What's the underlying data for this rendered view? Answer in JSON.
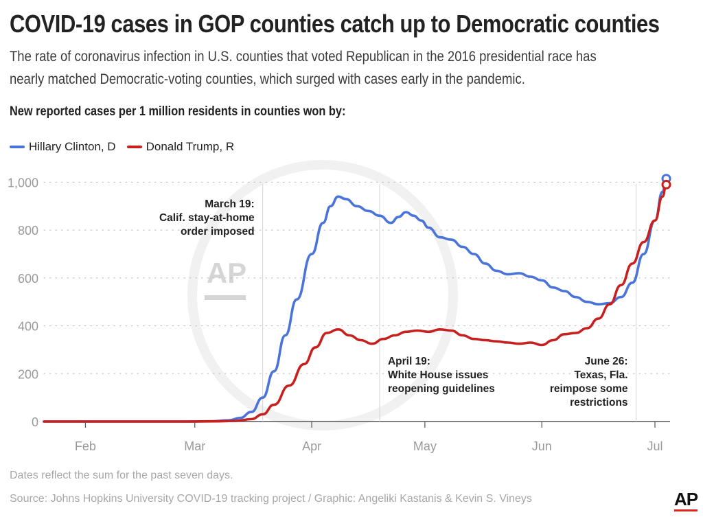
{
  "header": {
    "title": "COVID-19 cases in GOP counties catch up to Democratic counties",
    "subtitle": "The rate of coronavirus infection in U.S. counties that voted Republican in the 2016 presidential race has nearly matched Democratic-voting counties, which surged with cases early in the pandemic.",
    "axis_heading": "New reported cases per 1 million residents in counties won by:"
  },
  "legend": {
    "items": [
      {
        "label": "Hillary Clinton, D",
        "color": "#4a74d9"
      },
      {
        "label": "Donald Trump, R",
        "color": "#c8201f"
      }
    ]
  },
  "watermark": {
    "text": "AP"
  },
  "footer": {
    "note": "Dates reflect the sum for the past seven days.",
    "source": "Source: Johns Hopkins University COVID-19 tracking project / Graphic: Angeliki Kastanis & Kevin S. Vineys",
    "logo": "AP"
  },
  "chart_data": {
    "type": "line",
    "title": "New reported cases per 1 million residents in counties won by:",
    "xlabel": "",
    "ylabel": "",
    "x_domain": [
      "2020-01-21",
      "2020-07-05"
    ],
    "ylim": [
      0,
      1050
    ],
    "y_ticks": [
      0,
      200,
      400,
      600,
      800,
      1000
    ],
    "y_tick_labels": [
      "0",
      "200",
      "400",
      "600",
      "800",
      "1,000"
    ],
    "x_ticks": [
      {
        "date": "2020-02-01",
        "label": "Feb"
      },
      {
        "date": "2020-03-01",
        "label": "Mar"
      },
      {
        "date": "2020-04-01",
        "label": "Apr"
      },
      {
        "date": "2020-05-01",
        "label": "May"
      },
      {
        "date": "2020-06-01",
        "label": "Jun"
      },
      {
        "date": "2020-07-01",
        "label": "Jul"
      }
    ],
    "grid": true,
    "legend_position": "top-left",
    "annotations": [
      {
        "date": "2020-03-19",
        "lines": [
          "March 19:",
          "Calif. stay-at-home",
          "order imposed"
        ],
        "align": "left-of-line"
      },
      {
        "date": "2020-04-19",
        "lines": [
          "April 19:",
          "White House issues",
          "reopening guidelines"
        ],
        "align": "right-of-line"
      },
      {
        "date": "2020-06-26",
        "lines": [
          "June 26:",
          "Texas, Fla.",
          "reimpose some",
          "restrictions"
        ],
        "align": "left-of-line"
      }
    ],
    "series": [
      {
        "name": "Hillary Clinton, D",
        "color": "#4a74d9",
        "end_marker": true,
        "points": [
          [
            "2020-01-21",
            0
          ],
          [
            "2020-02-15",
            0
          ],
          [
            "2020-02-28",
            0
          ],
          [
            "2020-03-05",
            1
          ],
          [
            "2020-03-10",
            5
          ],
          [
            "2020-03-13",
            15
          ],
          [
            "2020-03-16",
            40
          ],
          [
            "2020-03-19",
            100
          ],
          [
            "2020-03-22",
            210
          ],
          [
            "2020-03-25",
            360
          ],
          [
            "2020-03-28",
            510
          ],
          [
            "2020-04-01",
            700
          ],
          [
            "2020-04-04",
            830
          ],
          [
            "2020-04-06",
            900
          ],
          [
            "2020-04-08",
            940
          ],
          [
            "2020-04-10",
            930
          ],
          [
            "2020-04-13",
            900
          ],
          [
            "2020-04-16",
            880
          ],
          [
            "2020-04-19",
            860
          ],
          [
            "2020-04-22",
            830
          ],
          [
            "2020-04-24",
            855
          ],
          [
            "2020-04-26",
            875
          ],
          [
            "2020-04-28",
            860
          ],
          [
            "2020-04-30",
            840
          ],
          [
            "2020-05-02",
            810
          ],
          [
            "2020-05-05",
            770
          ],
          [
            "2020-05-08",
            760
          ],
          [
            "2020-05-11",
            730
          ],
          [
            "2020-05-14",
            700
          ],
          [
            "2020-05-17",
            660
          ],
          [
            "2020-05-20",
            630
          ],
          [
            "2020-05-23",
            615
          ],
          [
            "2020-05-26",
            620
          ],
          [
            "2020-05-29",
            605
          ],
          [
            "2020-06-01",
            590
          ],
          [
            "2020-06-04",
            560
          ],
          [
            "2020-06-07",
            545
          ],
          [
            "2020-06-10",
            520
          ],
          [
            "2020-06-13",
            500
          ],
          [
            "2020-06-16",
            490
          ],
          [
            "2020-06-19",
            495
          ],
          [
            "2020-06-22",
            520
          ],
          [
            "2020-06-25",
            580
          ],
          [
            "2020-06-28",
            700
          ],
          [
            "2020-07-01",
            840
          ],
          [
            "2020-07-03",
            960
          ],
          [
            "2020-07-04",
            1015
          ]
        ]
      },
      {
        "name": "Donald Trump, R",
        "color": "#c8201f",
        "end_marker": true,
        "points": [
          [
            "2020-01-21",
            0
          ],
          [
            "2020-02-15",
            0
          ],
          [
            "2020-02-28",
            0
          ],
          [
            "2020-03-07",
            1
          ],
          [
            "2020-03-12",
            3
          ],
          [
            "2020-03-16",
            10
          ],
          [
            "2020-03-19",
            30
          ],
          [
            "2020-03-22",
            70
          ],
          [
            "2020-03-26",
            150
          ],
          [
            "2020-03-30",
            240
          ],
          [
            "2020-04-02",
            310
          ],
          [
            "2020-04-05",
            370
          ],
          [
            "2020-04-08",
            385
          ],
          [
            "2020-04-11",
            360
          ],
          [
            "2020-04-14",
            340
          ],
          [
            "2020-04-17",
            325
          ],
          [
            "2020-04-20",
            345
          ],
          [
            "2020-04-23",
            360
          ],
          [
            "2020-04-26",
            375
          ],
          [
            "2020-04-29",
            380
          ],
          [
            "2020-05-02",
            375
          ],
          [
            "2020-05-05",
            385
          ],
          [
            "2020-05-08",
            380
          ],
          [
            "2020-05-11",
            360
          ],
          [
            "2020-05-14",
            345
          ],
          [
            "2020-05-17",
            340
          ],
          [
            "2020-05-20",
            335
          ],
          [
            "2020-05-23",
            330
          ],
          [
            "2020-05-26",
            325
          ],
          [
            "2020-05-29",
            330
          ],
          [
            "2020-06-01",
            320
          ],
          [
            "2020-06-04",
            340
          ],
          [
            "2020-06-07",
            365
          ],
          [
            "2020-06-10",
            370
          ],
          [
            "2020-06-13",
            390
          ],
          [
            "2020-06-16",
            430
          ],
          [
            "2020-06-19",
            490
          ],
          [
            "2020-06-22",
            570
          ],
          [
            "2020-06-25",
            660
          ],
          [
            "2020-06-28",
            750
          ],
          [
            "2020-07-01",
            840
          ],
          [
            "2020-07-03",
            940
          ],
          [
            "2020-07-04",
            990
          ]
        ]
      }
    ]
  }
}
